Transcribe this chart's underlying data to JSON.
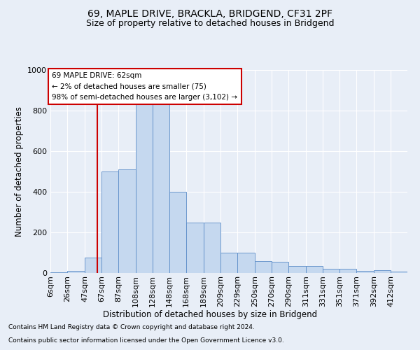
{
  "title1": "69, MAPLE DRIVE, BRACKLA, BRIDGEND, CF31 2PF",
  "title2": "Size of property relative to detached houses in Bridgend",
  "xlabel": "Distribution of detached houses by size in Bridgend",
  "ylabel": "Number of detached properties",
  "footnote1": "Contains HM Land Registry data © Crown copyright and database right 2024.",
  "footnote2": "Contains public sector information licensed under the Open Government Licence v3.0.",
  "annotation_line1": "69 MAPLE DRIVE: 62sqm",
  "annotation_line2": "← 2% of detached houses are smaller (75)",
  "annotation_line3": "98% of semi-detached houses are larger (3,102) →",
  "bar_color": "#c5d8ef",
  "bar_edge_color": "#5b8cc8",
  "red_line_x": 62,
  "categories": [
    "6sqm",
    "26sqm",
    "47sqm",
    "67sqm",
    "87sqm",
    "108sqm",
    "128sqm",
    "148sqm",
    "168sqm",
    "189sqm",
    "209sqm",
    "229sqm",
    "250sqm",
    "270sqm",
    "290sqm",
    "311sqm",
    "331sqm",
    "351sqm",
    "371sqm",
    "392sqm",
    "412sqm"
  ],
  "values": [
    5,
    10,
    75,
    500,
    510,
    830,
    840,
    400,
    250,
    250,
    100,
    100,
    60,
    55,
    35,
    35,
    20,
    20,
    10,
    15,
    8
  ],
  "bin_edges": [
    6,
    26,
    47,
    67,
    87,
    108,
    128,
    148,
    168,
    189,
    209,
    229,
    250,
    270,
    290,
    311,
    331,
    351,
    371,
    392,
    412,
    432
  ],
  "ylim": [
    0,
    1000
  ],
  "yticks": [
    0,
    200,
    400,
    600,
    800,
    1000
  ],
  "background_color": "#e8eef7",
  "plot_bg_color": "#e8eef7",
  "grid_color": "#ffffff",
  "red_line_color": "#cc0000",
  "annotation_box_color": "#ffffff",
  "annotation_box_edge": "#cc0000",
  "title1_fontsize": 10,
  "title2_fontsize": 9,
  "xlabel_fontsize": 8.5,
  "ylabel_fontsize": 8.5,
  "tick_fontsize": 8,
  "annotation_fontsize": 7.5,
  "footnote_fontsize": 6.5
}
